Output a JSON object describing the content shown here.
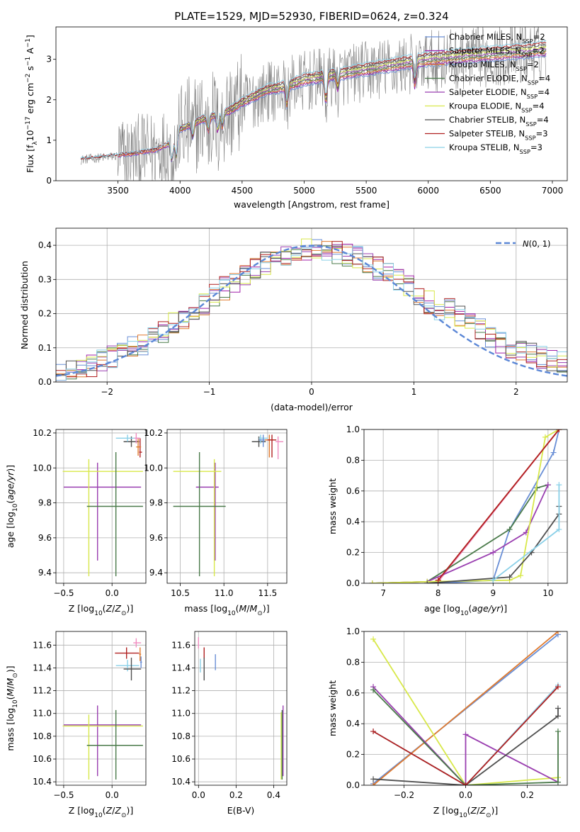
{
  "figure_title": "PLATE=1529, MJD=52930, FIBERID=0624, z=0.324",
  "colors": {
    "Chabrier MILES": "#6a8fd6",
    "Salpeter MILES": "#a020a8",
    "Kroupa MILES": "#e07a2e",
    "Chabrier ELODIE": "#4a7a4a",
    "Salpeter ELODIE": "#9a3fb0",
    "Kroupa ELODIE": "#d8e84a",
    "Chabrier STELIB": "#505050",
    "Salpeter STELIB": "#b02020",
    "Kroupa STELIB": "#8ad0e8",
    "spectrum": "#808080",
    "pink": "#f08cc0",
    "normal": "#5b87d6"
  },
  "chart_data": [
    {
      "id": "spectrum",
      "type": "line",
      "title": "PLATE=1529, MJD=52930, FIBERID=0624, z=0.324",
      "xlabel": "wavelength [Angstrom, rest frame]",
      "ylabel": "Flux [f_λ 10^-17 erg cm^-2 s^-1 A^-1]",
      "xlim": [
        3000,
        7120
      ],
      "ylim": [
        0,
        3.8
      ],
      "xticks": [
        3500,
        4000,
        4500,
        5000,
        5500,
        6000,
        6500,
        7000
      ],
      "yticks": [
        0,
        1,
        2,
        3
      ],
      "grid": false,
      "legend_position": "top-right",
      "continuum_knots": {
        "x": [
          3200,
          3400,
          3600,
          3800,
          3950,
          4000,
          4150,
          4300,
          4400,
          4500,
          4700,
          4860,
          5000,
          5200,
          5400,
          5600,
          5800,
          6000,
          6200,
          6400,
          6600,
          6800,
          6950
        ],
        "y": [
          0.52,
          0.58,
          0.65,
          0.75,
          0.95,
          1.25,
          1.45,
          1.6,
          1.7,
          1.9,
          2.2,
          2.3,
          2.45,
          2.55,
          2.65,
          2.75,
          2.85,
          2.95,
          3.0,
          3.05,
          3.1,
          3.15,
          3.2
        ]
      },
      "series": [
        {
          "name": "Chabrier MILES, N_SSP=2"
        },
        {
          "name": "Salpeter MILES, N_SSP=2"
        },
        {
          "name": "Kroupa MILES, N_SSP=2"
        },
        {
          "name": "Chabrier ELODIE, N_SSP=4"
        },
        {
          "name": "Salpeter ELODIE, N_SSP=4"
        },
        {
          "name": "Kroupa ELODIE, N_SSP=4"
        },
        {
          "name": "Chabrier STELIB, N_SSP=4"
        },
        {
          "name": "Salpeter STELIB, N_SSP=3"
        },
        {
          "name": "Kroupa STELIB, N_SSP=3"
        }
      ]
    },
    {
      "id": "residuals",
      "type": "histogram",
      "xlabel": "(data-model)/error",
      "ylabel": "Normed distribution",
      "xlim": [
        -2.5,
        2.5
      ],
      "ylim": [
        0,
        0.45
      ],
      "xticks": [
        -2,
        -1,
        0,
        1,
        2
      ],
      "yticks": [
        0.0,
        0.1,
        0.2,
        0.3,
        0.4
      ],
      "grid": true,
      "legend": {
        "label": "N(0, 1)",
        "position": "top-right"
      },
      "bins": 50
    },
    {
      "id": "age_vs_Z",
      "type": "errorbar",
      "xlabel": "Z [log10(Z/Z_sun)]",
      "ylabel": "age  [log10(age/yr)]",
      "xlim": [
        -0.58,
        0.35
      ],
      "ylim": [
        9.34,
        10.22
      ],
      "xticks": [
        -0.5,
        0.0
      ],
      "xtick_labels": [
        "−0.5",
        "0.0"
      ],
      "yticks": [
        9.4,
        9.6,
        9.8,
        10.0,
        10.2
      ],
      "grid": true,
      "points": [
        {
          "series": "Salpeter ELODIE",
          "x": -0.15,
          "xerr": [
            0.35,
            0.45
          ],
          "y": 9.89,
          "yerr": [
            0.42,
            0.14
          ]
        },
        {
          "series": "Kroupa ELODIE",
          "x": -0.24,
          "xerr": [
            0.27,
            0.56
          ],
          "y": 9.98,
          "yerr": [
            0.6,
            0.07
          ]
        },
        {
          "series": "Chabrier ELODIE",
          "x": 0.04,
          "xerr": [
            0.3,
            0.28
          ],
          "y": 9.78,
          "yerr": [
            0.4,
            0.31
          ]
        },
        {
          "series": "Chabrier STELIB",
          "x": 0.2,
          "xerr": [
            0.08,
            0.08
          ],
          "y": 10.15,
          "yerr": [
            0.03,
            0.03
          ]
        },
        {
          "series": "Kroupa STELIB",
          "x": 0.16,
          "xerr": [
            0.12,
            0.12
          ],
          "y": 10.17,
          "yerr": [
            0.02,
            0.02
          ]
        },
        {
          "series": "Salpeter STELIB",
          "x": 0.29,
          "xerr": [
            0.01,
            0.02
          ],
          "y": 10.09,
          "yerr": [
            0.03,
            0.08
          ]
        },
        {
          "series": "Kroupa MILES",
          "x": 0.27,
          "xerr": [
            0.02,
            0.03
          ],
          "y": 10.12,
          "yerr": [
            0.05,
            0.05
          ]
        },
        {
          "series": "pink",
          "x": 0.25,
          "xerr": [
            0.02,
            0.04
          ],
          "y": 10.17,
          "yerr": [
            0.03,
            0.03
          ]
        }
      ]
    },
    {
      "id": "age_vs_mass",
      "type": "errorbar",
      "xlabel": "mass [log10(M/M_sun)]",
      "xlim": [
        10.35,
        11.72
      ],
      "ylim": [
        9.34,
        10.22
      ],
      "xticks": [
        10.5,
        11.0,
        11.5
      ],
      "yticks": [
        9.4,
        9.6,
        9.8,
        10.0,
        10.2
      ],
      "grid": true,
      "points": [
        {
          "series": "Salpeter ELODIE",
          "x": 10.9,
          "xerr": [
            0.22,
            0.04
          ],
          "y": 9.89,
          "yerr": [
            0.42,
            0.14
          ]
        },
        {
          "series": "Kroupa ELODIE",
          "x": 10.89,
          "xerr": [
            0.47,
            0.08
          ],
          "y": 9.98,
          "yerr": [
            0.6,
            0.07
          ]
        },
        {
          "series": "Chabrier ELODIE",
          "x": 10.72,
          "xerr": [
            0.3,
            0.3
          ],
          "y": 9.78,
          "yerr": [
            0.4,
            0.31
          ]
        },
        {
          "series": "Chabrier STELIB",
          "x": 11.4,
          "xerr": [
            0.08,
            0.08
          ],
          "y": 10.15,
          "yerr": [
            0.03,
            0.03
          ]
        },
        {
          "series": "Kroupa STELIB",
          "x": 11.42,
          "xerr": [
            0.02,
            0.08
          ],
          "y": 10.17,
          "yerr": [
            0.03,
            0.02
          ]
        },
        {
          "series": "Chabrier MILES",
          "x": 11.45,
          "xerr": [
            0.05,
            0.05
          ],
          "y": 10.16,
          "yerr": [
            0.04,
            0.03
          ]
        },
        {
          "series": "Kroupa MILES",
          "x": 11.52,
          "xerr": [
            0.05,
            0.05
          ],
          "y": 10.16,
          "yerr": [
            0.1,
            0.03
          ]
        },
        {
          "series": "Salpeter STELIB",
          "x": 11.55,
          "xerr": [
            0.05,
            0.05
          ],
          "y": 10.16,
          "yerr": [
            0.1,
            0.03
          ]
        },
        {
          "series": "pink",
          "x": 11.62,
          "xerr": [
            0.03,
            0.06
          ],
          "y": 10.15,
          "yerr": [
            0.1,
            0.03
          ]
        }
      ]
    },
    {
      "id": "mass_weight_vs_age",
      "type": "line",
      "xlabel": "age  [log10(age/yr)]",
      "ylabel": "mass weight",
      "xlim": [
        6.65,
        10.35
      ],
      "ylim": [
        0,
        1
      ],
      "xticks": [
        7,
        8,
        9,
        10
      ],
      "yticks": [
        0.0,
        0.2,
        0.4,
        0.6,
        0.8,
        1.0
      ],
      "grid": true,
      "series": [
        {
          "name": "Chabrier MILES",
          "x": [
            8.0,
            9.0,
            9.3,
            10.1,
            10.2
          ],
          "y": [
            0.0,
            0.02,
            0.35,
            0.85,
            1.0
          ]
        },
        {
          "name": "Kroupa MILES",
          "x": [
            8.0,
            10.2
          ],
          "y": [
            0.02,
            1.0
          ]
        },
        {
          "name": "pink",
          "x": [
            8.0,
            10.2
          ],
          "y": [
            0.01,
            1.0
          ]
        },
        {
          "name": "Chabrier ELODIE",
          "x": [
            6.8,
            7.8,
            9.3,
            9.8,
            10.0
          ],
          "y": [
            0.0,
            0.01,
            0.35,
            0.62,
            0.64
          ]
        },
        {
          "name": "Salpeter ELODIE",
          "x": [
            6.8,
            7.8,
            9.0,
            9.6,
            10.0
          ],
          "y": [
            0.0,
            0.01,
            0.2,
            0.33,
            0.64
          ]
        },
        {
          "name": "Kroupa ELODIE",
          "x": [
            6.8,
            7.8,
            9.3,
            9.5,
            9.95,
            10.2
          ],
          "y": [
            0.0,
            0.01,
            0.02,
            0.05,
            0.95,
            1.0
          ]
        },
        {
          "name": "Chabrier STELIB",
          "x": [
            7.8,
            9.3,
            9.7,
            10.2,
            10.2
          ],
          "y": [
            0.0,
            0.04,
            0.2,
            0.45,
            0.5
          ]
        },
        {
          "name": "Salpeter STELIB",
          "x": [
            8.0,
            10.2
          ],
          "y": [
            0.02,
            1.0
          ]
        },
        {
          "name": "Kroupa STELIB",
          "x": [
            9.0,
            10.2,
            10.2
          ],
          "y": [
            0.02,
            0.35,
            0.64
          ]
        }
      ]
    },
    {
      "id": "mass_vs_Z",
      "type": "errorbar",
      "xlabel": "Z [log10(Z/Z_sun)]",
      "ylabel": "mass [log10(M/M_sun)]",
      "xlim": [
        -0.58,
        0.35
      ],
      "ylim": [
        10.37,
        11.72
      ],
      "xticks": [
        -0.5,
        0.0
      ],
      "xtick_labels": [
        "−0.5",
        "0.0"
      ],
      "yticks": [
        10.4,
        10.6,
        10.8,
        11.0,
        11.2,
        11.4,
        11.6
      ],
      "grid": true,
      "points": [
        {
          "series": "Salpeter ELODIE",
          "x": -0.15,
          "xerr": [
            0.35,
            0.45
          ],
          "y": 10.9,
          "yerr": [
            0.45,
            0.17
          ]
        },
        {
          "series": "Kroupa ELODIE",
          "x": -0.24,
          "xerr": [
            0.27,
            0.56
          ],
          "y": 10.89,
          "yerr": [
            0.47,
            0.1
          ]
        },
        {
          "series": "Chabrier ELODIE",
          "x": 0.04,
          "xerr": [
            0.3,
            0.28
          ],
          "y": 10.72,
          "yerr": [
            0.3,
            0.31
          ]
        },
        {
          "series": "Salpeter STELIB",
          "x": 0.15,
          "xerr": [
            0.12,
            0.13
          ],
          "y": 11.53,
          "yerr": [
            0.05,
            0.05
          ]
        },
        {
          "series": "Kroupa STELIB",
          "x": 0.16,
          "xerr": [
            0.12,
            0.12
          ],
          "y": 11.42,
          "yerr": [
            0.05,
            0.05
          ]
        },
        {
          "series": "Chabrier STELIB",
          "x": 0.2,
          "xerr": [
            0.08,
            0.1
          ],
          "y": 11.39,
          "yerr": [
            0.1,
            0.1
          ]
        },
        {
          "series": "pink",
          "x": 0.25,
          "xerr": [
            0.03,
            0.05
          ],
          "y": 11.62,
          "yerr": [
            0.04,
            0.04
          ]
        },
        {
          "series": "Chabrier MILES",
          "x": 0.3,
          "xerr": [
            0.01,
            0.01
          ],
          "y": 11.45,
          "yerr": [
            0.05,
            0.05
          ]
        },
        {
          "series": "Kroupa MILES",
          "x": 0.29,
          "xerr": [
            0.01,
            0.01
          ],
          "y": 11.52,
          "yerr": [
            0.06,
            0.06
          ]
        }
      ]
    },
    {
      "id": "mass_vs_EBV",
      "type": "errorbar",
      "xlabel": "E(B-V)",
      "xlim": [
        -0.02,
        0.47
      ],
      "ylim": [
        10.37,
        11.72
      ],
      "xticks": [
        0.0,
        0.2,
        0.4
      ],
      "yticks": [
        10.4,
        10.6,
        10.8,
        11.0,
        11.2,
        11.4,
        11.6
      ],
      "grid": true,
      "points": [
        {
          "series": "pink",
          "x": 0.0,
          "y": 11.62,
          "yerr": [
            0.05,
            0.05
          ]
        },
        {
          "series": "Kroupa STELIB",
          "x": 0.01,
          "y": 11.42,
          "yerr": [
            0.06,
            0.06
          ]
        },
        {
          "series": "Salpeter STELIB",
          "x": 0.03,
          "y": 11.53,
          "yerr": [
            0.05,
            0.05
          ]
        },
        {
          "series": "Chabrier STELIB",
          "x": 0.03,
          "y": 11.39,
          "yerr": [
            0.1,
            0.1
          ]
        },
        {
          "series": "Chabrier MILES",
          "x": 0.09,
          "y": 11.45,
          "yerr": [
            0.07,
            0.07
          ]
        },
        {
          "series": "Kroupa ELODIE",
          "x": 0.44,
          "y": 10.89,
          "yerr": [
            0.47,
            0.12
          ]
        },
        {
          "series": "Chabrier ELODIE",
          "x": 0.445,
          "y": 10.72,
          "yerr": [
            0.3,
            0.31
          ]
        },
        {
          "series": "Salpeter ELODIE",
          "x": 0.45,
          "y": 10.9,
          "yerr": [
            0.45,
            0.17
          ]
        }
      ]
    },
    {
      "id": "mass_weight_vs_Z",
      "type": "line",
      "xlabel": "Z [log10(Z/Z_sun)]",
      "ylabel": "mass weight",
      "xlim": [
        -0.33,
        0.33
      ],
      "ylim": [
        0,
        1
      ],
      "xticks": [
        -0.2,
        0.0,
        0.2
      ],
      "xtick_labels": [
        "−0.2",
        "0.0",
        "0.2"
      ],
      "yticks": [
        0.0,
        0.2,
        0.4,
        0.6,
        0.8,
        1.0
      ],
      "grid": true,
      "series": [
        {
          "name": "Chabrier MILES",
          "x": [
            -0.3,
            0.3
          ],
          "y": [
            0.01,
            0.98
          ]
        },
        {
          "name": "Kroupa MILES",
          "x": [
            -0.3,
            0.3
          ],
          "y": [
            0.0,
            1.0
          ]
        },
        {
          "name": "Kroupa ELODIE",
          "x": [
            -0.3,
            0.0,
            0.3
          ],
          "y": [
            0.95,
            0.0,
            0.05
          ]
        },
        {
          "name": "Salpeter ELODIE",
          "x": [
            -0.3,
            0.0,
            0.0,
            0.3
          ],
          "y": [
            0.64,
            0.0,
            0.33,
            0.02
          ]
        },
        {
          "name": "Chabrier ELODIE",
          "x": [
            -0.3,
            0.0,
            0.3,
            0.3
          ],
          "y": [
            0.62,
            0.0,
            0.02,
            0.35
          ]
        },
        {
          "name": "Chabrier STELIB",
          "x": [
            -0.3,
            0.0,
            0.3,
            0.3
          ],
          "y": [
            0.04,
            0.0,
            0.45,
            0.5
          ]
        },
        {
          "name": "Kroupa STELIB",
          "x": [
            -0.3,
            0.0,
            0.3
          ],
          "y": [
            0.35,
            0.0,
            0.65
          ]
        },
        {
          "name": "Salpeter STELIB",
          "x": [
            -0.3,
            0.0,
            0.3
          ],
          "y": [
            0.35,
            0.0,
            0.64
          ]
        }
      ]
    }
  ]
}
